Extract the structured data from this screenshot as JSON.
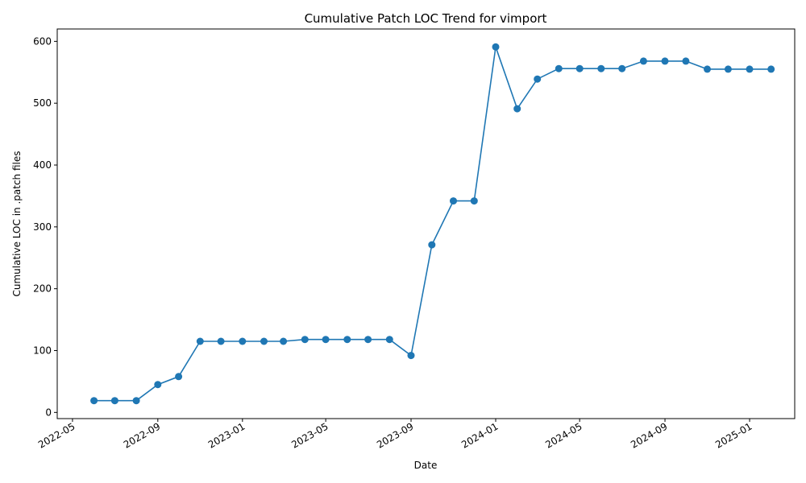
{
  "chart_data": {
    "type": "line",
    "title": "Cumulative Patch LOC Trend for vimport",
    "xlabel": "Date",
    "ylabel": "Cumulative LOC in .patch files",
    "xlim": [
      "2022-04-09",
      "2025-03-07"
    ],
    "ylim": [
      -10,
      620
    ],
    "grid": false,
    "legend": "none",
    "line_color": "#1f77b4",
    "x_ticks": [
      {
        "date": "2022-05-01",
        "label": "2022-05"
      },
      {
        "date": "2022-09-01",
        "label": "2022-09"
      },
      {
        "date": "2023-01-01",
        "label": "2023-01"
      },
      {
        "date": "2023-05-01",
        "label": "2023-05"
      },
      {
        "date": "2023-09-01",
        "label": "2023-09"
      },
      {
        "date": "2024-01-01",
        "label": "2024-01"
      },
      {
        "date": "2024-05-01",
        "label": "2024-05"
      },
      {
        "date": "2024-09-01",
        "label": "2024-09"
      },
      {
        "date": "2025-01-01",
        "label": "2025-01"
      }
    ],
    "y_ticks": [
      0,
      100,
      200,
      300,
      400,
      500,
      600
    ],
    "series": [
      {
        "x": [
          "2022-06-01",
          "2022-07-01",
          "2022-08-01",
          "2022-09-01",
          "2022-10-01",
          "2022-11-01",
          "2022-12-01",
          "2023-01-01",
          "2023-02-01",
          "2023-03-01",
          "2023-04-01",
          "2023-05-01",
          "2023-06-01",
          "2023-07-01",
          "2023-08-01",
          "2023-09-01",
          "2023-10-01",
          "2023-11-01",
          "2023-12-01",
          "2024-01-01",
          "2024-02-01",
          "2024-03-01",
          "2024-04-01",
          "2024-05-01",
          "2024-06-01",
          "2024-07-01",
          "2024-08-01",
          "2024-09-01",
          "2024-10-01",
          "2024-11-01",
          "2024-12-01",
          "2025-01-01",
          "2025-02-01"
        ],
        "values": [
          19,
          19,
          19,
          45,
          58,
          115,
          115,
          115,
          115,
          115,
          118,
          118,
          118,
          118,
          118,
          92,
          271,
          342,
          342,
          591,
          491,
          539,
          556,
          556,
          556,
          556,
          568,
          568,
          568,
          555,
          555,
          555,
          555
        ]
      }
    ]
  }
}
